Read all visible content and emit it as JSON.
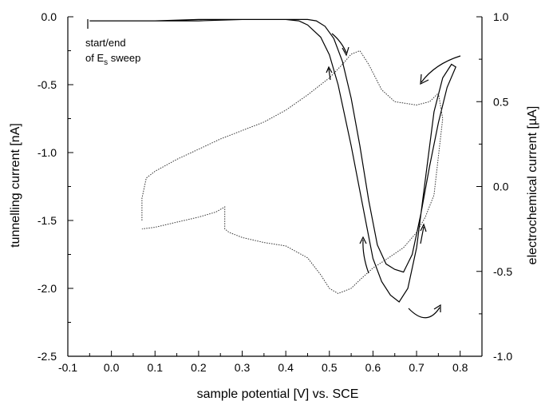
{
  "chart_data": {
    "type": "line",
    "xlabel": "sample potential [V] vs. SCE",
    "ylabel_left": "tunnelling current [nA]",
    "ylabel_right": "electrochemical current [µA]",
    "xlim": [
      -0.1,
      0.85
    ],
    "ylim_left": [
      -2.5,
      0.0
    ],
    "ylim_right": [
      -1.0,
      1.0
    ],
    "x_ticks": [
      -0.1,
      0.0,
      0.1,
      0.2,
      0.3,
      0.4,
      0.5,
      0.6,
      0.7,
      0.8
    ],
    "x_tick_labels": [
      "-0.1",
      "0.0",
      "0.1",
      "0.2",
      "0.3",
      "0.4",
      "0.5",
      "0.6",
      "0.7",
      "0.8"
    ],
    "y_left_ticks": [
      0.0,
      -0.5,
      -1.0,
      -1.5,
      -2.0,
      -2.5
    ],
    "y_left_tick_labels": [
      "0.0",
      "-0.5",
      "-1.0",
      "-1.5",
      "-2.0",
      "-2.5"
    ],
    "y_right_ticks": [
      1.0,
      0.5,
      0.0,
      -0.5,
      -1.0
    ],
    "y_right_tick_labels": [
      "1.0",
      "0.5",
      "0.0",
      "-0.5",
      "-1.0"
    ],
    "annotation": {
      "line1": "start/end",
      "line2_prefix": "of E",
      "line2_sub": "s",
      "line2_suffix": " sweep"
    },
    "series": [
      {
        "axis": "left",
        "style": "solid",
        "x": [
          -0.05,
          0.0,
          0.1,
          0.2,
          0.3,
          0.4,
          0.43,
          0.45,
          0.48,
          0.5,
          0.52,
          0.55,
          0.58,
          0.6,
          0.62,
          0.64,
          0.66,
          0.68,
          0.7,
          0.72,
          0.74,
          0.76,
          0.78,
          0.79,
          0.77,
          0.75,
          0.73,
          0.71,
          0.69,
          0.67,
          0.65,
          0.63,
          0.61,
          0.59,
          0.57,
          0.55,
          0.53,
          0.51,
          0.49,
          0.47,
          0.45,
          0.43,
          0.4,
          0.3,
          0.2,
          0.1,
          0.0,
          -0.05
        ],
        "y": [
          -0.03,
          -0.03,
          -0.03,
          -0.03,
          -0.02,
          -0.02,
          -0.03,
          -0.06,
          -0.15,
          -0.28,
          -0.5,
          -0.95,
          -1.45,
          -1.78,
          -1.95,
          -2.05,
          -2.1,
          -2.0,
          -1.7,
          -1.2,
          -0.7,
          -0.45,
          -0.35,
          -0.37,
          -0.52,
          -0.78,
          -1.1,
          -1.45,
          -1.75,
          -1.88,
          -1.86,
          -1.82,
          -1.68,
          -1.35,
          -0.95,
          -0.6,
          -0.33,
          -0.16,
          -0.07,
          -0.03,
          -0.02,
          -0.02,
          -0.02,
          -0.02,
          -0.02,
          -0.03,
          -0.03,
          -0.03
        ]
      },
      {
        "axis": "right",
        "style": "dotted",
        "x": [
          0.07,
          0.07,
          0.08,
          0.1,
          0.15,
          0.2,
          0.25,
          0.3,
          0.35,
          0.4,
          0.45,
          0.5,
          0.53,
          0.55,
          0.57,
          0.59,
          0.62,
          0.65,
          0.7,
          0.73,
          0.75,
          0.76,
          0.74,
          0.72,
          0.7,
          0.67,
          0.63,
          0.6,
          0.57,
          0.55,
          0.52,
          0.5,
          0.48,
          0.45,
          0.4,
          0.35,
          0.3,
          0.27,
          0.26,
          0.26,
          0.24,
          0.2,
          0.15,
          0.1,
          0.07
        ],
        "y": [
          -0.2,
          -0.07,
          0.05,
          0.09,
          0.16,
          0.22,
          0.28,
          0.33,
          0.38,
          0.45,
          0.54,
          0.64,
          0.72,
          0.78,
          0.8,
          0.72,
          0.57,
          0.5,
          0.48,
          0.5,
          0.55,
          0.4,
          -0.05,
          -0.18,
          -0.27,
          -0.36,
          -0.43,
          -0.48,
          -0.55,
          -0.6,
          -0.63,
          -0.6,
          -0.52,
          -0.42,
          -0.35,
          -0.33,
          -0.3,
          -0.27,
          -0.25,
          -0.12,
          -0.15,
          -0.18,
          -0.21,
          -0.24,
          -0.25
        ]
      }
    ]
  }
}
